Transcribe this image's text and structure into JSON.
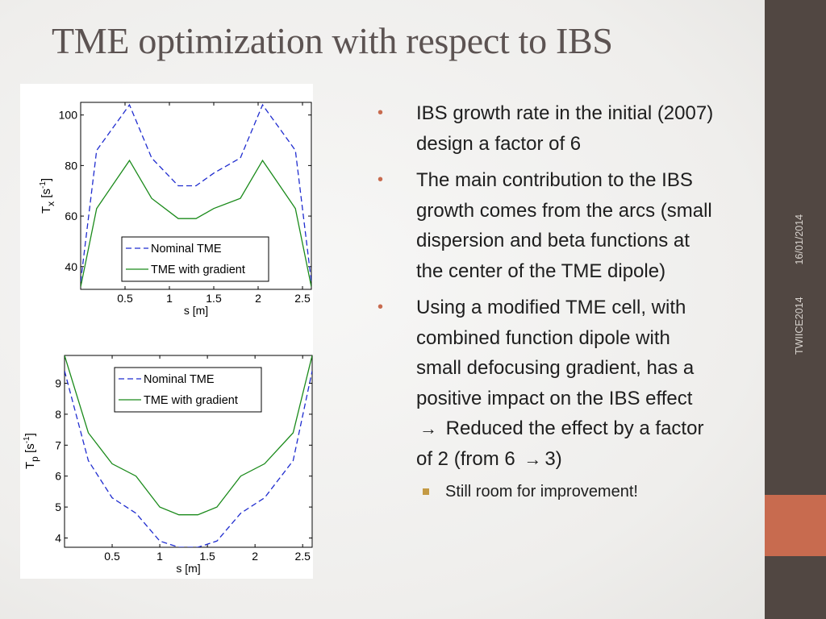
{
  "slide": {
    "title": "TME optimization with respect to IBS",
    "sidebar": {
      "date": "16/01/2014",
      "event": "TWIICE2014",
      "color": "#514742",
      "accent": "#c86b4f"
    }
  },
  "bullets": [
    {
      "text": "IBS growth rate in the initial (2007) design a factor of 6"
    },
    {
      "text": "The main contribution to the IBS growth comes from the arcs (small dispersion and beta functions at the center of the TME dipole)"
    },
    {
      "text_before_arrow_1": "Using a modified TME cell, with combined function dipole with small defocusing gradient, has a positive impact on the IBS effect",
      "arrow_1": "→",
      "text_middle": "Reduced the effect by a factor of 2 (from 6",
      "arrow_2": "→",
      "text_after_arrow_2": "3)"
    }
  ],
  "sub_bullets": [
    {
      "text": "Still room for improvement!"
    }
  ],
  "chart_data": [
    {
      "type": "line",
      "xlabel": "s [m]",
      "ylabel_main": "T",
      "ylabel_sub": "x",
      "ylabel_unit_open": " [s",
      "ylabel_unit_sup": "-1",
      "ylabel_unit_close": "]",
      "xlim": [
        0,
        2.6
      ],
      "ylim": [
        31,
        105
      ],
      "xticks": [
        0.5,
        1,
        1.5,
        2,
        2.5
      ],
      "xtick_labels": [
        "0.5",
        "1",
        "1.5",
        "2",
        "2.5"
      ],
      "yticks": [
        40,
        60,
        80,
        100
      ],
      "ytick_labels": [
        "40",
        "60",
        "80",
        "100"
      ],
      "grid": false,
      "legend_placement": "bottom-center",
      "series": [
        {
          "name": "Nominal TME",
          "color": "#1f2ccf",
          "style": "dashed",
          "x": [
            0,
            0.18,
            0.55,
            0.8,
            1.1,
            1.3,
            1.5,
            1.8,
            2.05,
            2.42,
            2.6
          ],
          "y": [
            34,
            86,
            104,
            83,
            72,
            72,
            77,
            83,
            104,
            86,
            34
          ]
        },
        {
          "name": "TME with gradient",
          "color": "#1a8a1a",
          "style": "solid",
          "x": [
            0,
            0.18,
            0.55,
            0.8,
            1.1,
            1.3,
            1.5,
            1.8,
            2.05,
            2.42,
            2.6
          ],
          "y": [
            32,
            63,
            82,
            67,
            59,
            59,
            63,
            67,
            82,
            63,
            32
          ]
        }
      ]
    },
    {
      "type": "line",
      "xlabel": "s [m]",
      "ylabel_main": "T",
      "ylabel_sub": "p",
      "ylabel_unit_open": " [s",
      "ylabel_unit_sup": "-1",
      "ylabel_unit_close": "]",
      "xlim": [
        0,
        2.6
      ],
      "ylim": [
        3.7,
        9.9
      ],
      "xticks": [
        0.5,
        1,
        1.5,
        2,
        2.5
      ],
      "xtick_labels": [
        "0.5",
        "1",
        "1.5",
        "2",
        "2.5"
      ],
      "yticks": [
        4,
        5,
        6,
        7,
        8,
        9
      ],
      "ytick_labels": [
        "4",
        "5",
        "6",
        "7",
        "8",
        "9"
      ],
      "grid": false,
      "legend_placement": "top-center",
      "series": [
        {
          "name": "Nominal TME",
          "color": "#1f2ccf",
          "style": "dashed",
          "x": [
            0,
            0.25,
            0.5,
            0.75,
            1.0,
            1.2,
            1.4,
            1.6,
            1.85,
            2.1,
            2.4,
            2.6
          ],
          "y": [
            9.4,
            6.5,
            5.3,
            4.8,
            3.9,
            3.7,
            3.7,
            3.9,
            4.8,
            5.3,
            6.5,
            9.4
          ]
        },
        {
          "name": "TME with gradient",
          "color": "#1a8a1a",
          "style": "solid",
          "x": [
            0,
            0.25,
            0.5,
            0.75,
            1.0,
            1.2,
            1.4,
            1.6,
            1.85,
            2.1,
            2.4,
            2.6
          ],
          "y": [
            9.9,
            7.4,
            6.4,
            6.0,
            5.0,
            4.75,
            4.75,
            5.0,
            6.0,
            6.4,
            7.4,
            9.9
          ]
        }
      ]
    }
  ]
}
